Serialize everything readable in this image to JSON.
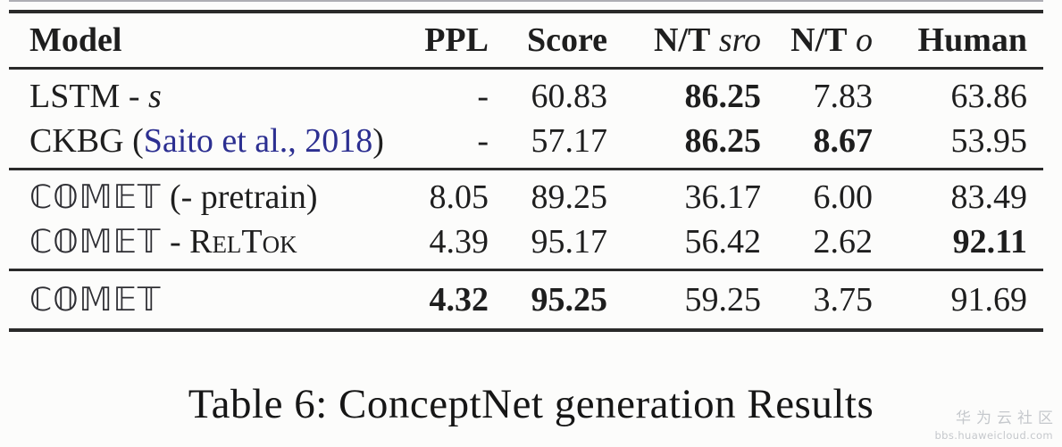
{
  "caption": "Table 6: ConceptNet generation Results",
  "colors": {
    "citation_link": "#2c2f91",
    "watermark_gray": "#c5c8cc",
    "rule_dark": "#2a2a2a"
  },
  "watermark": {
    "title": "华为云社区",
    "url": "bbs.huaweicloud.com"
  },
  "table": {
    "columns": [
      {
        "key": "model",
        "label": "Model",
        "align": "left"
      },
      {
        "key": "ppl",
        "label": "PPL",
        "align": "right"
      },
      {
        "key": "score",
        "label": "Score",
        "align": "right"
      },
      {
        "key": "nt-sro",
        "label": "N/T",
        "math": "sro",
        "align": "right"
      },
      {
        "key": "nt-o",
        "label": "N/T",
        "math": "o",
        "align": "right"
      },
      {
        "key": "human",
        "label": "Human",
        "align": "right"
      }
    ],
    "groups": [
      {
        "rows": [
          {
            "model": [
              {
                "t": "LSTM - ",
                "s": "plain"
              },
              {
                "t": "s",
                "s": "mathit"
              }
            ],
            "values": [
              {
                "v": "-",
                "bold": false
              },
              {
                "v": "60.83",
                "bold": false
              },
              {
                "v": "86.25",
                "bold": true
              },
              {
                "v": "7.83",
                "bold": false
              },
              {
                "v": "63.86",
                "bold": false
              }
            ]
          },
          {
            "model": [
              {
                "t": "CKBG (",
                "s": "plain"
              },
              {
                "t": "Saito et al., 2018",
                "s": "cite"
              },
              {
                "t": ")",
                "s": "plain"
              }
            ],
            "values": [
              {
                "v": "-",
                "bold": false
              },
              {
                "v": "57.17",
                "bold": false
              },
              {
                "v": "86.25",
                "bold": true
              },
              {
                "v": "8.67",
                "bold": true
              },
              {
                "v": "53.95",
                "bold": false
              }
            ]
          }
        ]
      },
      {
        "rows": [
          {
            "model": [
              {
                "t": "ℂ𝕆𝕄𝔼𝕋",
                "s": "brand"
              },
              {
                "t": " (- pretrain)",
                "s": "plain"
              }
            ],
            "values": [
              {
                "v": "8.05",
                "bold": false
              },
              {
                "v": "89.25",
                "bold": false
              },
              {
                "v": "36.17",
                "bold": false
              },
              {
                "v": "6.00",
                "bold": false
              },
              {
                "v": "83.49",
                "bold": false
              }
            ]
          },
          {
            "model": [
              {
                "t": "ℂ𝕆𝕄𝔼𝕋",
                "s": "brand"
              },
              {
                "t": " - ",
                "s": "plain"
              },
              {
                "t": "RelTok",
                "s": "smallcaps"
              }
            ],
            "values": [
              {
                "v": "4.39",
                "bold": false
              },
              {
                "v": "95.17",
                "bold": false
              },
              {
                "v": "56.42",
                "bold": false
              },
              {
                "v": "2.62",
                "bold": false
              },
              {
                "v": "92.11",
                "bold": true
              }
            ]
          }
        ]
      },
      {
        "rows": [
          {
            "model": [
              {
                "t": "ℂ𝕆𝕄𝔼𝕋",
                "s": "brand"
              }
            ],
            "values": [
              {
                "v": "4.32",
                "bold": true
              },
              {
                "v": "95.25",
                "bold": true
              },
              {
                "v": "59.25",
                "bold": false
              },
              {
                "v": "3.75",
                "bold": false
              },
              {
                "v": "91.69",
                "bold": false
              }
            ]
          }
        ]
      }
    ]
  }
}
